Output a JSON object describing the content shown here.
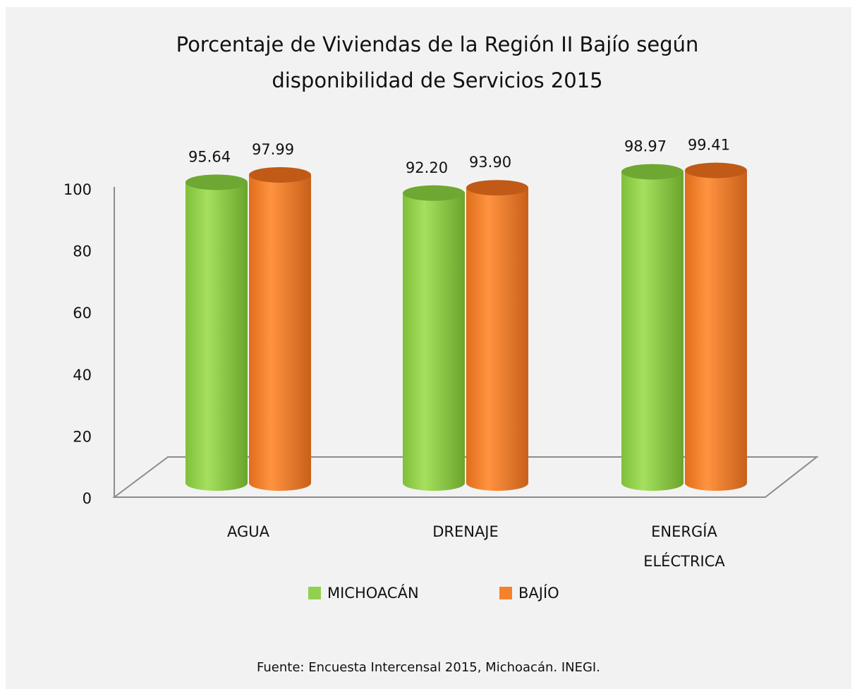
{
  "chart_data": {
    "type": "cylinder-bar",
    "title": "Porcentaje de Viviendas de la Región II Bajío según disponibilidad de Servicios 2015",
    "categories": [
      "AGUA",
      "DRENAJE",
      "ENERGÍA ELÉCTRICA"
    ],
    "series": [
      {
        "name": "MICHOACÁN",
        "color": "#92d050",
        "values": [
          95.64,
          92.2,
          98.97
        ],
        "value_labels": [
          "95.64",
          "92.20",
          "98.97"
        ]
      },
      {
        "name": "BAJÍO",
        "color": "#f5822a",
        "values": [
          97.99,
          93.9,
          99.41
        ],
        "value_labels": [
          "97.99",
          "93.90",
          "99.41"
        ]
      }
    ],
    "ylim": [
      0,
      100
    ],
    "yticks": [
      0,
      20,
      40,
      60,
      80,
      100
    ],
    "source": "Fuente:  Encuesta Intercensal 2015, Michoacán. INEGI."
  }
}
